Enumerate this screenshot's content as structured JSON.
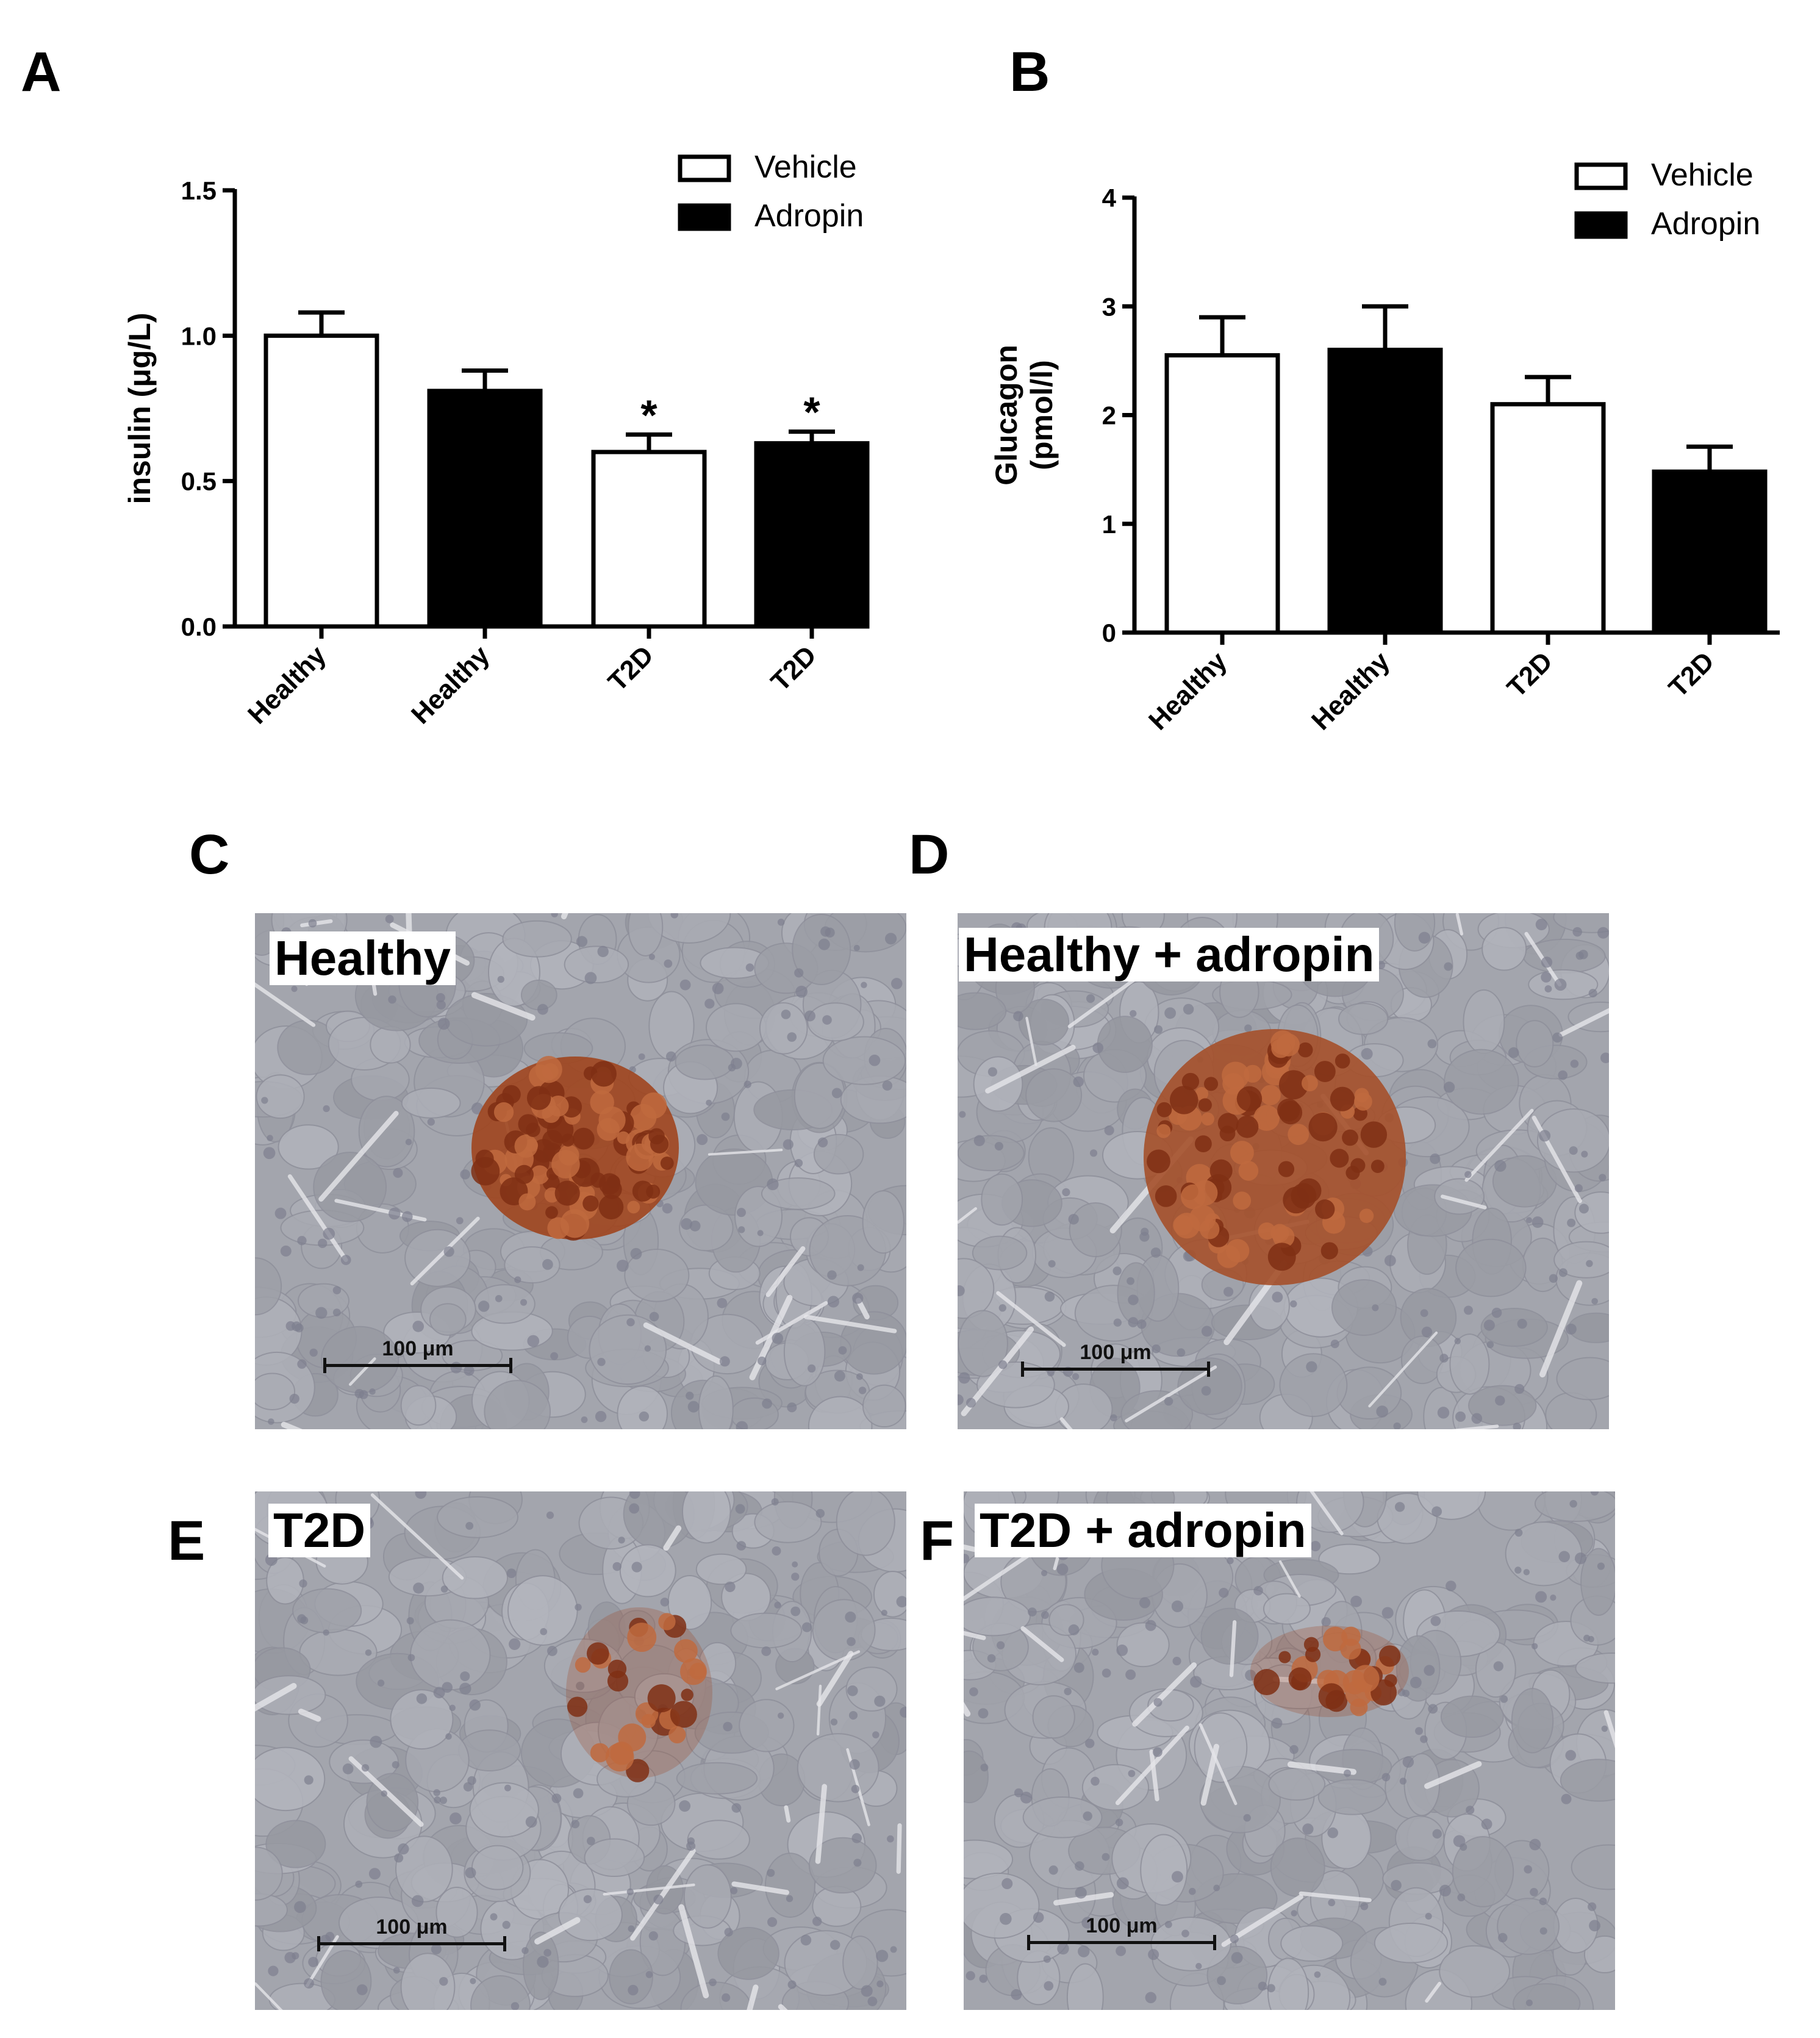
{
  "panels": {
    "A": {
      "letter": "A"
    },
    "B": {
      "letter": "B"
    },
    "C": {
      "letter": "C",
      "label": "Healthy",
      "scale": "100 μm",
      "islet_color": "#a0451e"
    },
    "D": {
      "letter": "D",
      "label": "Healthy + adropin",
      "scale": "100 μm",
      "islet_color": "#a5502a"
    },
    "E": {
      "letter": "E",
      "label": "T2D",
      "scale": "100 μm",
      "islet_color": "#9a3f1c"
    },
    "F": {
      "letter": "F",
      "label": "T2D + adropin",
      "scale": "100 μm",
      "islet_color": "#9a3f1c"
    }
  },
  "colors": {
    "vehicle": "#ffffff",
    "adropin": "#000000",
    "tissue": "#a6a8b0",
    "stain": "#a0451e"
  },
  "chart_data": [
    {
      "type": "bar",
      "panel": "A",
      "ylabel": "insulin (μg/L)",
      "xlabel": "",
      "categories": [
        "Healthy",
        "Healthy",
        "T2D",
        "T2D"
      ],
      "groups": [
        "Vehicle",
        "Adropin",
        "Vehicle",
        "Adropin"
      ],
      "values": [
        1.0,
        0.81,
        0.6,
        0.63
      ],
      "errors": [
        0.08,
        0.07,
        0.06,
        0.04
      ],
      "annotations": [
        "",
        "",
        "*",
        "*"
      ],
      "ylim": [
        0,
        1.5
      ],
      "yticks": [
        "0.0",
        "0.5",
        "1.0",
        "1.5"
      ],
      "legend": [
        {
          "name": "Vehicle",
          "fill": "#ffffff"
        },
        {
          "name": "Adropin",
          "fill": "#000000"
        }
      ],
      "legend_position": "top-right",
      "grid": false
    },
    {
      "type": "bar",
      "panel": "B",
      "ylabel": "Glucagon (pmol/l)",
      "ylabel_lines": [
        "Glucagon",
        "(pmol/l)"
      ],
      "xlabel": "",
      "categories": [
        "Healthy",
        "Healthy",
        "T2D",
        "T2D"
      ],
      "groups": [
        "Vehicle",
        "Adropin",
        "Vehicle",
        "Adropin"
      ],
      "values": [
        2.55,
        2.6,
        2.1,
        1.48
      ],
      "errors": [
        0.35,
        0.4,
        0.25,
        0.23
      ],
      "annotations": [
        "",
        "",
        "",
        ""
      ],
      "ylim": [
        0,
        4
      ],
      "yticks": [
        "0",
        "1",
        "2",
        "3",
        "4"
      ],
      "legend": [
        {
          "name": "Vehicle",
          "fill": "#ffffff"
        },
        {
          "name": "Adropin",
          "fill": "#000000"
        }
      ],
      "legend_position": "top-right",
      "grid": false
    }
  ]
}
